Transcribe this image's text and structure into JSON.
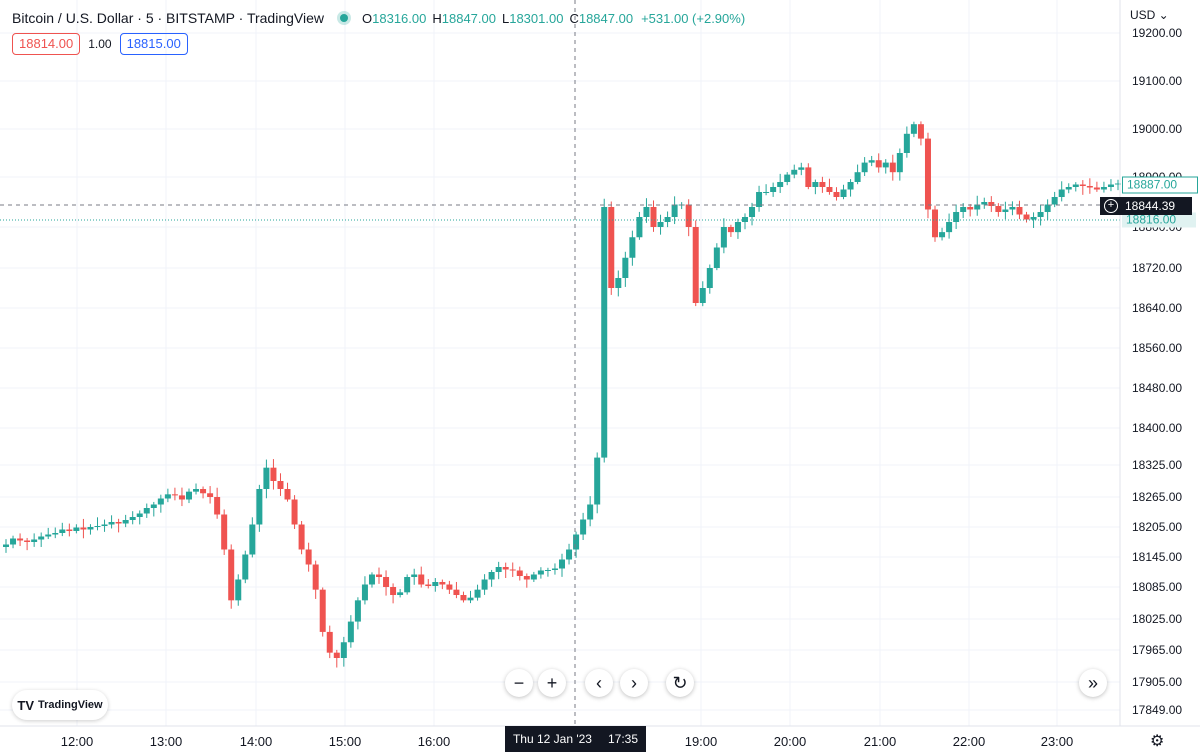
{
  "header": {
    "title": "Bitcoin / U.S. Dollar · 5 · BITSTAMP · TradingView",
    "open_label": "O",
    "open": "18316.00",
    "high_label": "H",
    "high": "18847.00",
    "low_label": "L",
    "low": "18301.00",
    "close_label": "C",
    "close": "18847.00",
    "change": "+531.00 (+2.90%)",
    "status_color": "#26a69a"
  },
  "trade": {
    "sell": "18814.00",
    "spread": "1.00",
    "buy": "18815.00"
  },
  "currency": "USD",
  "tags": {
    "last": "18887.00",
    "cursor": "18844.39",
    "ask": "18816.00"
  },
  "time_cursor": {
    "date": "Thu 12 Jan '23",
    "time": "17:35"
  },
  "logo": "TradingView",
  "colors": {
    "up": "#26a69a",
    "down": "#ef5350",
    "grid": "#f0f3fa"
  },
  "chart_data": {
    "type": "candlestick",
    "price_ticks": [
      "19200.00",
      "19100.00",
      "19000.00",
      "18900.00",
      "18800.00",
      "18720.00",
      "18640.00",
      "18560.00",
      "18480.00",
      "18400.00",
      "18325.00",
      "18265.00",
      "18205.00",
      "18145.00",
      "18085.00",
      "18025.00",
      "17965.00",
      "17905.00",
      "17849.00"
    ],
    "time_ticks": [
      "12:00",
      "13:00",
      "14:00",
      "15:00",
      "16:00",
      "19:00",
      "20:00",
      "21:00",
      "22:00",
      "23:00"
    ],
    "candles_close": [
      18170,
      18182,
      18178,
      18175,
      18180,
      18186,
      18190,
      18193,
      18200,
      18197,
      18204,
      18200,
      18205,
      18207,
      18210,
      18215,
      18212,
      18219,
      18225,
      18232,
      18243,
      18250,
      18262,
      18270,
      18268,
      18260,
      18275,
      18280,
      18272,
      18265,
      18230,
      18160,
      18060,
      18100,
      18150,
      18210,
      18280,
      18320,
      18295,
      18280,
      18260,
      18210,
      18160,
      18130,
      18080,
      18000,
      17960,
      17950,
      17980,
      18020,
      18060,
      18090,
      18110,
      18105,
      18085,
      18070,
      18075,
      18105,
      18110,
      18090,
      18087,
      18095,
      18090,
      18080,
      18070,
      18060,
      18065,
      18080,
      18100,
      18115,
      18125,
      18120,
      18118,
      18107,
      18100,
      18110,
      18118,
      18119,
      18122,
      18140,
      18160,
      18190,
      18220,
      18250,
      18340,
      18840,
      18680,
      18700,
      18740,
      18780,
      18820,
      18840,
      18800,
      18810,
      18820,
      18845,
      18845,
      18800,
      18650,
      18680,
      18720,
      18760,
      18800,
      18790,
      18810,
      18820,
      18840,
      18870,
      18870,
      18880,
      18890,
      18905,
      18915,
      18920,
      18880,
      18890,
      18880,
      18870,
      18860,
      18875,
      18890,
      18910,
      18930,
      18935,
      18920,
      18930,
      18910,
      18950,
      18990,
      19010,
      18980,
      18835,
      18780,
      18790,
      18810,
      18830,
      18840,
      18835,
      18845,
      18850,
      18842,
      18830,
      18835,
      18840,
      18825,
      18815,
      18820,
      18830,
      18845,
      18860,
      18875,
      18880,
      18885,
      18882,
      18879,
      18875,
      18880,
      18885,
      18887
    ]
  }
}
